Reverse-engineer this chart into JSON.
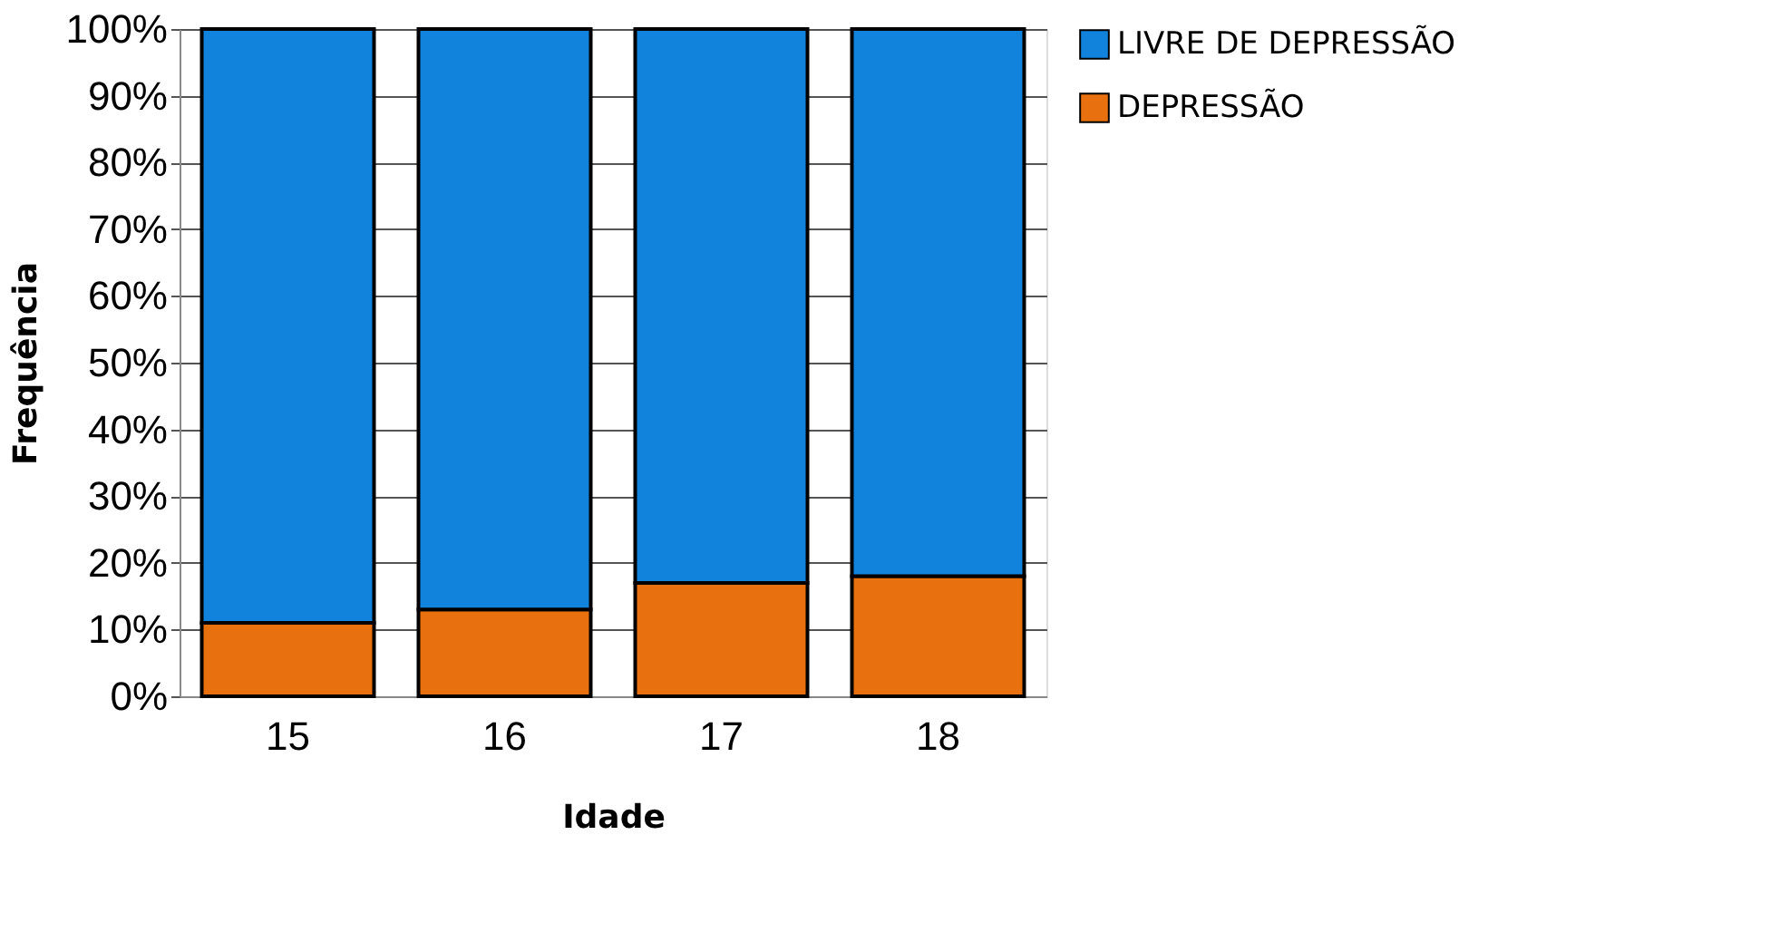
{
  "chart_data": {
    "type": "bar",
    "stacked": true,
    "xlabel": "Idade",
    "ylabel": "Frequência",
    "categories": [
      "15",
      "16",
      "17",
      "18"
    ],
    "series": [
      {
        "name": "DEPRESSÃO",
        "color": "#e8700f",
        "values": [
          11,
          13,
          17,
          18
        ]
      },
      {
        "name": "LIVRE DE DEPRESSÃO",
        "color": "#1283dc",
        "values": [
          89,
          87,
          83,
          82
        ]
      }
    ],
    "ylim": [
      0,
      100
    ],
    "yticks": [
      {
        "value": 0,
        "label": "0%"
      },
      {
        "value": 10,
        "label": "10%"
      },
      {
        "value": 20,
        "label": "20%"
      },
      {
        "value": 30,
        "label": "30%"
      },
      {
        "value": 40,
        "label": "40%"
      },
      {
        "value": 50,
        "label": "50%"
      },
      {
        "value": 60,
        "label": "60%"
      },
      {
        "value": 70,
        "label": "70%"
      },
      {
        "value": 80,
        "label": "80%"
      },
      {
        "value": 90,
        "label": "90%"
      },
      {
        "value": 100,
        "label": "100%"
      }
    ],
    "grid": "y",
    "legend": "right"
  }
}
